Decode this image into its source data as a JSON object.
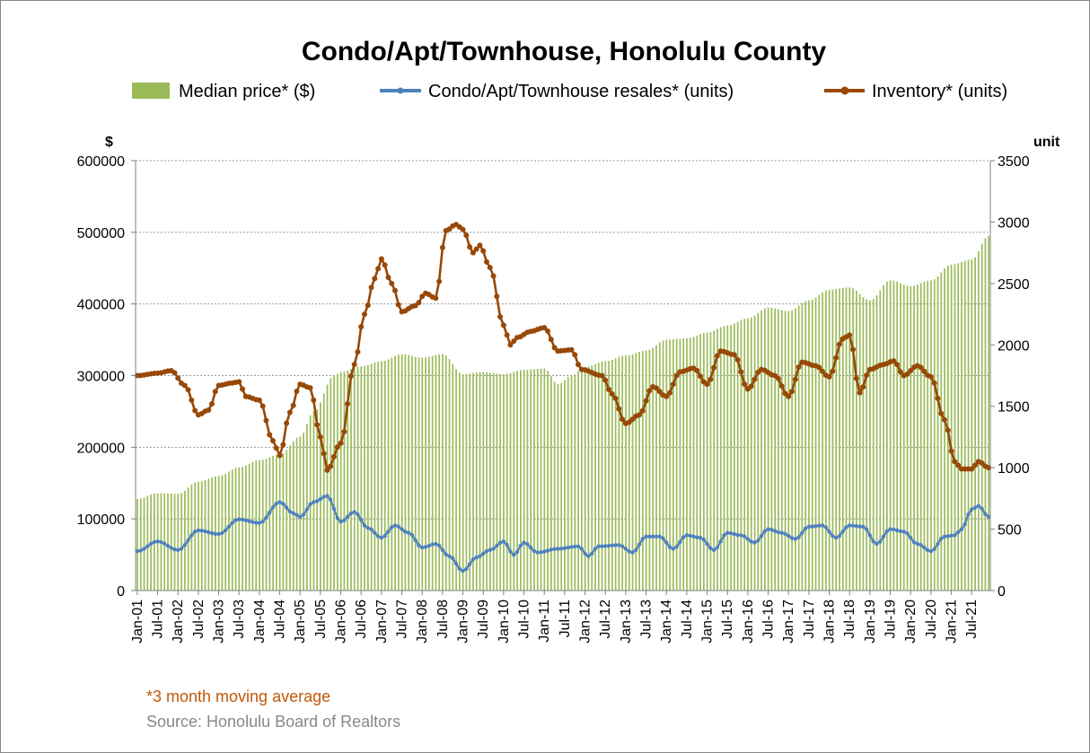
{
  "chart_data": {
    "type": "bar+line",
    "title": "Condo/Apt/Townhouse, Honolulu County",
    "left_axis_unit": "$",
    "right_axis_unit": "unit",
    "left_ylim": [
      0,
      600000
    ],
    "right_ylim": [
      0,
      3500
    ],
    "left_ticks": [
      "0",
      "100000",
      "200000",
      "300000",
      "400000",
      "500000",
      "600000"
    ],
    "right_ticks": [
      "0",
      "500",
      "1000",
      "1500",
      "2000",
      "2500",
      "3000",
      "3500"
    ],
    "x_tick_labels": [
      "Jan-01",
      "Jul-01",
      "Jan-02",
      "Jul-02",
      "Jan-03",
      "Jul-03",
      "Jan-04",
      "Jul-04",
      "Jan-05",
      "Jul-05",
      "Jan-06",
      "Jul-06",
      "Jan-07",
      "Jul-07",
      "Jan-08",
      "Jul-08",
      "Jan-09",
      "Jul-09",
      "Jan-10",
      "Jul-10",
      "Jan-11",
      "Jul-11",
      "Jan-12",
      "Jul-12",
      "Jan-13",
      "Jul-13",
      "Jan-14",
      "Jul-14",
      "Jan-15",
      "Jul-15",
      "Jan-16",
      "Jul-16",
      "Jan-17",
      "Jul-17",
      "Jan-18",
      "Jul-18",
      "Jan-19",
      "Jul-19",
      "Jan-20",
      "Jul-20",
      "Jan-21",
      "Jul-21"
    ],
    "months": 252,
    "grid": true,
    "legend_position": "top",
    "colors": {
      "median_price": "#9bbb59",
      "resales": "#4f81bd",
      "inventory": "#984807"
    },
    "series": [
      {
        "name": "Median price* ($)",
        "axis": "left",
        "kind": "bar",
        "anchors": [
          [
            0,
            128000
          ],
          [
            6,
            136000
          ],
          [
            12,
            135000
          ],
          [
            18,
            152000
          ],
          [
            24,
            160000
          ],
          [
            30,
            172000
          ],
          [
            36,
            182000
          ],
          [
            42,
            190000
          ],
          [
            48,
            215000
          ],
          [
            52,
            250000
          ],
          [
            58,
            300000
          ],
          [
            60,
            305000
          ],
          [
            66,
            313000
          ],
          [
            72,
            320000
          ],
          [
            78,
            330000
          ],
          [
            84,
            325000
          ],
          [
            90,
            330000
          ],
          [
            96,
            302000
          ],
          [
            102,
            305000
          ],
          [
            108,
            302000
          ],
          [
            114,
            308000
          ],
          [
            120,
            310000
          ],
          [
            124,
            288000
          ],
          [
            128,
            300000
          ],
          [
            132,
            312000
          ],
          [
            138,
            320000
          ],
          [
            144,
            328000
          ],
          [
            150,
            335000
          ],
          [
            156,
            350000
          ],
          [
            162,
            352000
          ],
          [
            168,
            360000
          ],
          [
            174,
            370000
          ],
          [
            180,
            380000
          ],
          [
            186,
            395000
          ],
          [
            192,
            390000
          ],
          [
            198,
            405000
          ],
          [
            204,
            420000
          ],
          [
            210,
            423000
          ],
          [
            216,
            405000
          ],
          [
            222,
            433000
          ],
          [
            228,
            425000
          ],
          [
            234,
            433000
          ],
          [
            240,
            455000
          ],
          [
            246,
            462000
          ],
          [
            251,
            495000
          ]
        ]
      },
      {
        "name": "Condo/Apt/Townhouse resales* (units)",
        "axis": "right",
        "kind": "line",
        "anchors": [
          [
            0,
            320
          ],
          [
            6,
            400
          ],
          [
            12,
            330
          ],
          [
            18,
            490
          ],
          [
            24,
            460
          ],
          [
            30,
            580
          ],
          [
            36,
            550
          ],
          [
            42,
            720
          ],
          [
            46,
            630
          ],
          [
            48,
            600
          ],
          [
            52,
            720
          ],
          [
            56,
            770
          ],
          [
            60,
            560
          ],
          [
            64,
            640
          ],
          [
            68,
            510
          ],
          [
            72,
            430
          ],
          [
            76,
            530
          ],
          [
            80,
            470
          ],
          [
            84,
            350
          ],
          [
            88,
            380
          ],
          [
            92,
            280
          ],
          [
            96,
            160
          ],
          [
            100,
            270
          ],
          [
            104,
            330
          ],
          [
            108,
            400
          ],
          [
            111,
            290
          ],
          [
            114,
            390
          ],
          [
            118,
            310
          ],
          [
            124,
            340
          ],
          [
            130,
            360
          ],
          [
            133,
            280
          ],
          [
            136,
            360
          ],
          [
            142,
            370
          ],
          [
            146,
            310
          ],
          [
            150,
            440
          ],
          [
            154,
            440
          ],
          [
            158,
            340
          ],
          [
            162,
            450
          ],
          [
            166,
            430
          ],
          [
            170,
            330
          ],
          [
            174,
            470
          ],
          [
            178,
            450
          ],
          [
            182,
            390
          ],
          [
            186,
            500
          ],
          [
            190,
            470
          ],
          [
            194,
            420
          ],
          [
            198,
            520
          ],
          [
            202,
            530
          ],
          [
            206,
            430
          ],
          [
            210,
            530
          ],
          [
            214,
            520
          ],
          [
            218,
            380
          ],
          [
            222,
            500
          ],
          [
            226,
            480
          ],
          [
            230,
            380
          ],
          [
            234,
            320
          ],
          [
            238,
            440
          ],
          [
            241,
            450
          ],
          [
            243,
            500
          ],
          [
            246,
            660
          ],
          [
            248,
            690
          ],
          [
            251,
            600
          ]
        ]
      },
      {
        "name": "Inventory* (units)",
        "axis": "right",
        "kind": "line",
        "anchors": [
          [
            0,
            1750
          ],
          [
            6,
            1770
          ],
          [
            10,
            1790
          ],
          [
            14,
            1670
          ],
          [
            18,
            1430
          ],
          [
            21,
            1470
          ],
          [
            24,
            1670
          ],
          [
            28,
            1690
          ],
          [
            30,
            1700
          ],
          [
            32,
            1580
          ],
          [
            36,
            1550
          ],
          [
            40,
            1220
          ],
          [
            42,
            1100
          ],
          [
            45,
            1450
          ],
          [
            48,
            1680
          ],
          [
            51,
            1650
          ],
          [
            54,
            1250
          ],
          [
            56,
            980
          ],
          [
            60,
            1200
          ],
          [
            64,
            1840
          ],
          [
            67,
            2250
          ],
          [
            70,
            2540
          ],
          [
            72,
            2700
          ],
          [
            75,
            2500
          ],
          [
            78,
            2270
          ],
          [
            82,
            2320
          ],
          [
            85,
            2420
          ],
          [
            88,
            2380
          ],
          [
            91,
            2930
          ],
          [
            94,
            2980
          ],
          [
            96,
            2940
          ],
          [
            99,
            2750
          ],
          [
            101,
            2810
          ],
          [
            104,
            2630
          ],
          [
            108,
            2160
          ],
          [
            110,
            2000
          ],
          [
            112,
            2060
          ],
          [
            116,
            2110
          ],
          [
            120,
            2140
          ],
          [
            124,
            1950
          ],
          [
            128,
            1960
          ],
          [
            131,
            1800
          ],
          [
            137,
            1750
          ],
          [
            140,
            1600
          ],
          [
            144,
            1360
          ],
          [
            148,
            1430
          ],
          [
            152,
            1660
          ],
          [
            156,
            1580
          ],
          [
            160,
            1780
          ],
          [
            164,
            1810
          ],
          [
            168,
            1680
          ],
          [
            172,
            1950
          ],
          [
            176,
            1920
          ],
          [
            180,
            1640
          ],
          [
            184,
            1800
          ],
          [
            188,
            1750
          ],
          [
            192,
            1580
          ],
          [
            196,
            1860
          ],
          [
            200,
            1830
          ],
          [
            204,
            1740
          ],
          [
            208,
            2050
          ],
          [
            210,
            2080
          ],
          [
            213,
            1610
          ],
          [
            216,
            1800
          ],
          [
            220,
            1840
          ],
          [
            223,
            1870
          ],
          [
            226,
            1750
          ],
          [
            230,
            1830
          ],
          [
            234,
            1740
          ],
          [
            238,
            1390
          ],
          [
            241,
            1050
          ],
          [
            243,
            990
          ],
          [
            246,
            990
          ],
          [
            248,
            1050
          ],
          [
            251,
            1000
          ]
        ]
      }
    ],
    "footnote": "*3 month moving average",
    "source": "Source: Honolulu Board of Realtors"
  }
}
